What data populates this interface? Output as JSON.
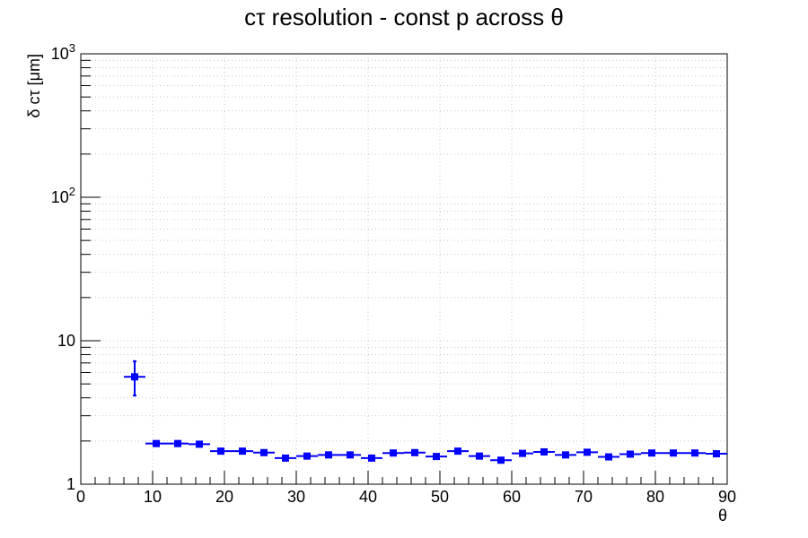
{
  "chart_data": {
    "type": "scatter",
    "title": "cτ resolution - const p across θ",
    "xlabel": "θ",
    "ylabel": "δ cτ [μm]",
    "xlim": [
      0,
      90
    ],
    "ylim": [
      1,
      1000
    ],
    "y_scale": "log",
    "grid": true,
    "x_ticks": [
      0,
      10,
      20,
      30,
      40,
      50,
      60,
      70,
      80,
      90
    ],
    "x_tick_labels": [
      "0",
      "10",
      "20",
      "30",
      "40",
      "50",
      "60",
      "70",
      "80",
      "90"
    ],
    "y_tick_labels": [
      {
        "value": 1,
        "base": "1",
        "exp": ""
      },
      {
        "value": 10,
        "base": "10",
        "exp": ""
      },
      {
        "value": 100,
        "base": "10",
        "exp": "2"
      },
      {
        "value": 1000,
        "base": "10",
        "exp": "3"
      }
    ],
    "series": [
      {
        "color": "#0000ff",
        "marker": "square",
        "x": [
          7.5,
          10.5,
          13.5,
          16.5,
          19.5,
          22.5,
          25.5,
          28.5,
          31.5,
          34.5,
          37.5,
          40.5,
          43.5,
          46.5,
          49.5,
          52.5,
          55.5,
          58.5,
          61.5,
          64.5,
          67.5,
          70.5,
          73.5,
          76.5,
          79.5,
          82.5,
          85.5,
          88.5
        ],
        "x_err": [
          1.5,
          1.5,
          1.5,
          1.5,
          1.5,
          1.5,
          1.5,
          1.5,
          1.5,
          1.5,
          1.5,
          1.5,
          1.5,
          1.5,
          1.5,
          1.5,
          1.5,
          1.5,
          1.5,
          1.5,
          1.5,
          1.5,
          1.5,
          1.5,
          1.5,
          1.5,
          1.5,
          1.5
        ],
        "y": [
          5.6,
          1.92,
          1.92,
          1.9,
          1.7,
          1.7,
          1.66,
          1.52,
          1.57,
          1.6,
          1.6,
          1.52,
          1.65,
          1.66,
          1.56,
          1.7,
          1.57,
          1.47,
          1.64,
          1.68,
          1.6,
          1.67,
          1.55,
          1.62,
          1.65,
          1.65,
          1.65,
          1.63
        ],
        "y_err_low": [
          1.45,
          0.05,
          0.05,
          0.05,
          0.04,
          0.04,
          0.04,
          0.04,
          0.04,
          0.04,
          0.04,
          0.04,
          0.04,
          0.04,
          0.04,
          0.04,
          0.04,
          0.04,
          0.04,
          0.04,
          0.04,
          0.04,
          0.04,
          0.04,
          0.04,
          0.04,
          0.04,
          0.04
        ],
        "y_err_high": [
          1.6,
          0.05,
          0.05,
          0.05,
          0.04,
          0.04,
          0.04,
          0.04,
          0.04,
          0.04,
          0.04,
          0.04,
          0.04,
          0.04,
          0.04,
          0.04,
          0.04,
          0.04,
          0.04,
          0.04,
          0.04,
          0.04,
          0.04,
          0.04,
          0.04,
          0.04,
          0.04,
          0.04
        ]
      }
    ]
  }
}
